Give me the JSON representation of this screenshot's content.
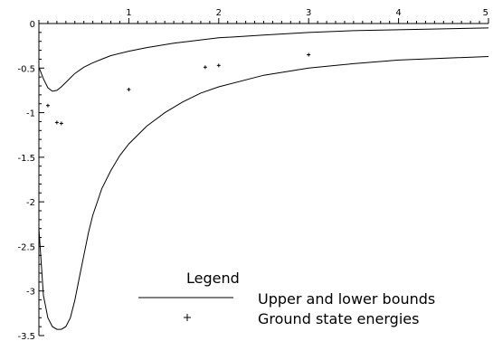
{
  "chart_data": {
    "type": "line",
    "title": "",
    "xlabel": "",
    "ylabel": "",
    "xlim": [
      0,
      5
    ],
    "ylim": [
      -3.5,
      0
    ],
    "x_ticks": [
      {
        "value": 1,
        "label": "1"
      },
      {
        "value": 2,
        "label": "2"
      },
      {
        "value": 3,
        "label": "3"
      },
      {
        "value": 4,
        "label": "4"
      },
      {
        "value": 5,
        "label": "5"
      }
    ],
    "y_ticks": [
      {
        "value": 0,
        "label": "0"
      },
      {
        "value": -0.5,
        "label": "-0.5"
      },
      {
        "value": -1,
        "label": "-1"
      },
      {
        "value": -1.5,
        "label": "-1.5"
      },
      {
        "value": -2,
        "label": "-2"
      },
      {
        "value": -2.5,
        "label": "-2.5"
      },
      {
        "value": -3,
        "label": "-3"
      },
      {
        "value": -3.5,
        "label": "-3.5"
      }
    ],
    "grid": false,
    "legend": {
      "title": "Legend",
      "position": "bottom-right",
      "entries": [
        {
          "label": "Upper and lower bounds",
          "marker": "line"
        },
        {
          "label": "Ground state energies",
          "marker": "cross"
        }
      ]
    },
    "series": [
      {
        "legend_index": 0,
        "style": "line",
        "x": [
          0,
          0.05,
          0.1,
          0.15,
          0.2,
          0.25,
          0.3,
          0.35,
          0.4,
          0.5,
          0.6,
          0.7,
          0.8,
          1.0,
          1.2,
          1.5,
          2.0,
          2.5,
          3.0,
          3.5,
          4.0,
          4.5,
          5.0
        ],
        "y": [
          -0.49,
          -0.62,
          -0.72,
          -0.76,
          -0.75,
          -0.71,
          -0.66,
          -0.61,
          -0.56,
          -0.49,
          -0.44,
          -0.4,
          -0.36,
          -0.31,
          -0.27,
          -0.22,
          -0.16,
          -0.13,
          -0.1,
          -0.08,
          -0.07,
          -0.06,
          -0.05
        ]
      },
      {
        "legend_index": 0,
        "style": "line",
        "x": [
          0,
          0.05,
          0.1,
          0.15,
          0.2,
          0.25,
          0.3,
          0.35,
          0.4,
          0.45,
          0.5,
          0.55,
          0.6,
          0.7,
          0.8,
          0.9,
          1.0,
          1.2,
          1.4,
          1.6,
          1.8,
          2.0,
          2.5,
          3.0,
          3.5,
          4.0,
          4.5,
          5.0
        ],
        "y": [
          -2.3,
          -3.05,
          -3.3,
          -3.4,
          -3.43,
          -3.43,
          -3.4,
          -3.3,
          -3.1,
          -2.85,
          -2.6,
          -2.35,
          -2.15,
          -1.85,
          -1.65,
          -1.48,
          -1.35,
          -1.15,
          -1.0,
          -0.88,
          -0.78,
          -0.71,
          -0.58,
          -0.5,
          -0.45,
          -0.41,
          -0.39,
          -0.37
        ]
      },
      {
        "legend_index": 1,
        "style": "cross",
        "x": [
          0.1,
          0.2,
          0.25,
          1.0,
          1.85,
          2.0,
          3.0
        ],
        "y": [
          -0.92,
          -1.11,
          -1.12,
          -0.74,
          -0.49,
          -0.47,
          -0.35
        ]
      }
    ]
  }
}
